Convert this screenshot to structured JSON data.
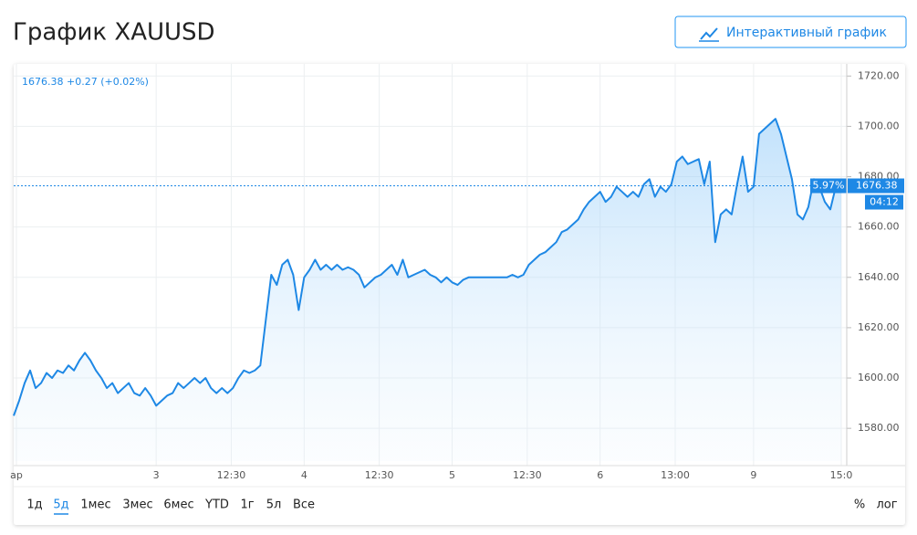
{
  "chart_data": {
    "type": "area",
    "title": "График XAUUSD",
    "quote": "1676.38 +0.27 (+0.02%)",
    "x": [
      0,
      1,
      2,
      3,
      4,
      5,
      6,
      7,
      8,
      9,
      10,
      11,
      12,
      13,
      14,
      15,
      16,
      17,
      18,
      19,
      20,
      21,
      22,
      23,
      24,
      25,
      26,
      27,
      28,
      29,
      30,
      31,
      32,
      33,
      34,
      35,
      36,
      37,
      38,
      39,
      40,
      41,
      42,
      43,
      44,
      45,
      46,
      47,
      48,
      49,
      50,
      51,
      52,
      53,
      54,
      55,
      56,
      57,
      58,
      59,
      60,
      61,
      62,
      63,
      64,
      65,
      66,
      67,
      68,
      69,
      70,
      71,
      72,
      73,
      74,
      75,
      76,
      77,
      78,
      79,
      80,
      81,
      82,
      83,
      84,
      85,
      86,
      87,
      88,
      89,
      90,
      91,
      92,
      93,
      94,
      95,
      96,
      97,
      98,
      99,
      100,
      101,
      102,
      103,
      104,
      105,
      106,
      107,
      108,
      109,
      110,
      111,
      112,
      113,
      114,
      115,
      116,
      117,
      118,
      119,
      120,
      121,
      122,
      123,
      124,
      125,
      126,
      127,
      128,
      129,
      130,
      131,
      132,
      133,
      134,
      135,
      136,
      137,
      138,
      139,
      140,
      141,
      142,
      143,
      144,
      145,
      146,
      147,
      148,
      149,
      150,
      151
    ],
    "series": [
      {
        "name": "XAUUSD",
        "color": "#1e88e5",
        "values": [
          1585,
          1591,
          1598,
          1603,
          1596,
          1598,
          1602,
          1600,
          1603,
          1602,
          1605,
          1603,
          1607,
          1610,
          1607,
          1603,
          1600,
          1596,
          1598,
          1594,
          1596,
          1598,
          1594,
          1593,
          1596,
          1593,
          1589,
          1591,
          1593,
          1594,
          1598,
          1596,
          1598,
          1600,
          1598,
          1600,
          1596,
          1594,
          1596,
          1594,
          1596,
          1600,
          1603,
          1602,
          1603,
          1605,
          1623,
          1641,
          1637,
          1645,
          1647,
          1641,
          1627,
          1640,
          1643,
          1647,
          1643,
          1645,
          1643,
          1645,
          1643,
          1644,
          1643,
          1641,
          1636,
          1638,
          1640,
          1641,
          1643,
          1645,
          1641,
          1647,
          1640,
          1641,
          1642,
          1643,
          1641,
          1640,
          1638,
          1640,
          1638,
          1637,
          1639,
          1640,
          1640,
          1640,
          1640,
          1640,
          1640,
          1640,
          1640,
          1641,
          1640,
          1641,
          1645,
          1647,
          1649,
          1650,
          1652,
          1654,
          1658,
          1659,
          1661,
          1663,
          1667,
          1670,
          1672,
          1674,
          1670,
          1672,
          1676,
          1674,
          1672,
          1674,
          1672,
          1677,
          1679,
          1672,
          1676,
          1674,
          1677,
          1686,
          1688,
          1685,
          1686,
          1687,
          1677,
          1686,
          1654,
          1665,
          1667,
          1665,
          1677,
          1688,
          1674,
          1676,
          1697,
          1699,
          1701,
          1703,
          1697,
          1688,
          1679,
          1665,
          1663,
          1668,
          1679,
          1676,
          1670,
          1667,
          1676,
          1676.38
        ]
      }
    ],
    "xlim": [
      0,
      152
    ],
    "xticks": [
      {
        "value": 0.5,
        "label": "ар"
      },
      {
        "value": 26,
        "label": "3"
      },
      {
        "value": 39.7,
        "label": "12:30"
      },
      {
        "value": 53,
        "label": "4"
      },
      {
        "value": 66.7,
        "label": "12:30"
      },
      {
        "value": 80,
        "label": "5"
      },
      {
        "value": 93.7,
        "label": "12:30"
      },
      {
        "value": 107,
        "label": "6"
      },
      {
        "value": 120.7,
        "label": "13:00"
      },
      {
        "value": 135,
        "label": "9"
      },
      {
        "value": 151,
        "label": "15:0"
      }
    ],
    "ylim": [
      1567,
      1723
    ],
    "yticks": [
      {
        "value": 1580,
        "label": "1580.00"
      },
      {
        "value": 1600,
        "label": "1600.00"
      },
      {
        "value": 1620,
        "label": "1620.00"
      },
      {
        "value": 1640,
        "label": "1640.00"
      },
      {
        "value": 1660,
        "label": "1660.00"
      },
      {
        "value": 1680,
        "label": "1680.00"
      },
      {
        "value": 1700,
        "label": "1700.00"
      },
      {
        "value": 1720,
        "label": "1720.00"
      }
    ],
    "grid": true,
    "last_price": {
      "value": 1676.38,
      "label": "1676.38"
    },
    "change_tag": "5.97%",
    "countdown": "04:12"
  },
  "controls": {
    "interactive_button": "Интерактивный график",
    "ranges": [
      "1д",
      "5д",
      "1мес",
      "3мес",
      "6мес",
      "YTD",
      "1г",
      "5л",
      "Все"
    ],
    "active_range": 1,
    "percent": "%",
    "log": "лог"
  }
}
